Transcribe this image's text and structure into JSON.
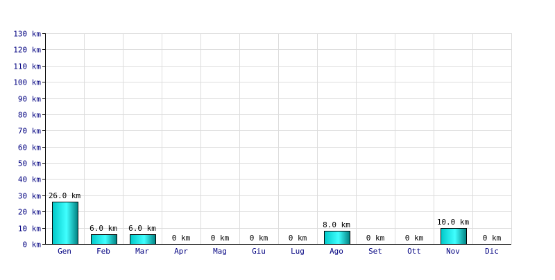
{
  "chart_data": {
    "type": "bar",
    "categories": [
      "Gen",
      "Feb",
      "Mar",
      "Apr",
      "Mag",
      "Giu",
      "Lug",
      "Ago",
      "Set",
      "Ott",
      "Nov",
      "Dic"
    ],
    "values": [
      26.0,
      6.0,
      6.0,
      0,
      0,
      0,
      0,
      8.0,
      0,
      0,
      10.0,
      0
    ],
    "value_labels": [
      "26.0 km",
      "6.0 km",
      "6.0 km",
      "0 km",
      "0 km",
      "0 km",
      "0 km",
      "8.0 km",
      "0 km",
      "0 km",
      "10.0 km",
      "0 km"
    ],
    "y_ticks": [
      {
        "value": 0,
        "label": "0 km"
      },
      {
        "value": 10,
        "label": "10 km"
      },
      {
        "value": 20,
        "label": "20 km"
      },
      {
        "value": 30,
        "label": "30 km"
      },
      {
        "value": 40,
        "label": "40 km"
      },
      {
        "value": 50,
        "label": "50 km"
      },
      {
        "value": 60,
        "label": "60 km"
      },
      {
        "value": 70,
        "label": "70 km"
      },
      {
        "value": 80,
        "label": "80 km"
      },
      {
        "value": 90,
        "label": "90 km"
      },
      {
        "value": 100,
        "label": "100 km"
      },
      {
        "value": 110,
        "label": "110 km"
      },
      {
        "value": 120,
        "label": "120 km"
      },
      {
        "value": 130,
        "label": "130 km"
      }
    ],
    "ylim": [
      0,
      130
    ],
    "grid": true,
    "title": "",
    "xlabel": "",
    "ylabel": "",
    "colors": {
      "bar_light": "#40ffff",
      "bar_mid": "#00c8c8",
      "bar_dark": "#008080",
      "bar_stroke": "#000000",
      "grid": "#dcdcdc",
      "axis": "#000000",
      "tick_label": "#000080",
      "data_label": "#000000"
    }
  }
}
